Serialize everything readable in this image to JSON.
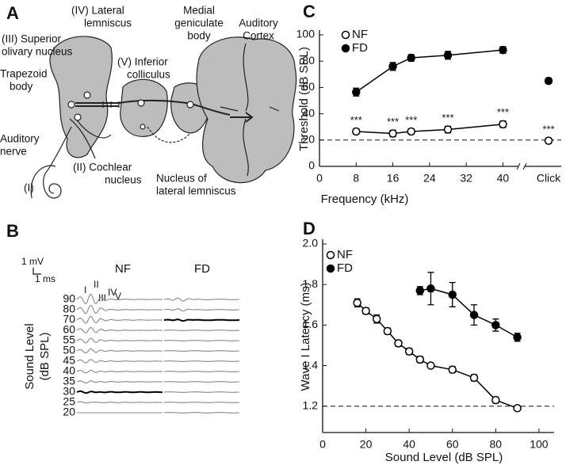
{
  "figure": {
    "panel_labels": [
      "A",
      "B",
      "C",
      "D"
    ],
    "diagram": {
      "labels": [
        [
          "(IV) Lateral",
          "lemniscus"
        ],
        [
          "(III) Superior",
          "olivary nucleus"
        ],
        [
          "Medial",
          "geniculate",
          "body"
        ],
        [
          "Auditory",
          "Cortex"
        ],
        [
          "Trapezoid",
          "body"
        ],
        [
          "(V) Inferior",
          "colliculus"
        ],
        [
          "Auditory",
          "nerve"
        ],
        [
          "(II) Cochlear",
          "nucleus"
        ],
        [
          "Nucleus of",
          "lateral lemniscus"
        ],
        [
          "(I)"
        ]
      ]
    },
    "traces": {
      "scale": [
        "1 mV",
        "1 ms"
      ],
      "groups": [
        "NF",
        "FD"
      ],
      "y_label": [
        "Sound Level",
        "(dB SPL)"
      ],
      "levels": [
        90,
        80,
        70,
        60,
        55,
        50,
        45,
        40,
        35,
        30,
        25,
        20
      ],
      "highlight": [
        30,
        70
      ],
      "waves": [
        "I",
        "II",
        "III",
        "IV",
        "V"
      ]
    }
  },
  "chart_data": [
    {
      "type": "line",
      "y_label": "Threshold (dB SPL)",
      "x_label": "Frequency (kHz)",
      "xlim": [
        0,
        42
      ],
      "xticks": [
        0,
        8,
        16,
        24,
        32,
        40
      ],
      "ylim": [
        0,
        100
      ],
      "yticks": [
        0,
        20,
        40,
        60,
        80,
        100
      ],
      "x": [
        8,
        16,
        20,
        28,
        40
      ],
      "reference_line": 20,
      "extra_category": "Click",
      "legend": "top-left",
      "series": [
        {
          "name": "NF",
          "marker": "open",
          "values": [
            26.5,
            25,
            26.5,
            28,
            32
          ],
          "errors": [
            2,
            2.5,
            2,
            2.5,
            2.5
          ],
          "point_labels": [
            "***",
            "***",
            "***",
            "***",
            "***"
          ],
          "extra_value": 19.5,
          "extra_error": 2,
          "extra_point_label": "***"
        },
        {
          "name": "FD",
          "marker": "filled",
          "values": [
            56.5,
            76,
            82.5,
            84.5,
            88.5
          ],
          "errors": [
            3,
            3,
            2.5,
            3,
            2.5
          ],
          "extra_value": 65,
          "extra_error": 2
        }
      ]
    },
    {
      "type": "line",
      "y_label": "Wave I Latency (ms)",
      "x_label": "Sound Level (dB SPL)",
      "xlim": [
        0,
        107
      ],
      "xticks": [
        0,
        20,
        40,
        60,
        80,
        100
      ],
      "ylim": [
        1.07,
        2.0
      ],
      "yticks": [
        1.2,
        1.4,
        1.6,
        1.8,
        {
          "value": 2.0,
          "label": "2.0"
        }
      ],
      "reference_line": 1.2,
      "legend": "top-left",
      "series": [
        {
          "name": "NF",
          "marker": "open",
          "x": [
            16,
            20,
            25,
            30,
            35,
            40,
            45,
            50,
            60,
            70,
            80,
            90
          ],
          "values": [
            1.71,
            1.67,
            1.63,
            1.57,
            1.51,
            1.47,
            1.43,
            1.4,
            1.38,
            1.34,
            1.23,
            1.19
          ],
          "errors": [
            0.02,
            0.015,
            0.02,
            0.015,
            0.015,
            0.015,
            0.015,
            0.01,
            0.015,
            0.015,
            0.015,
            0.01
          ]
        },
        {
          "name": "FD",
          "marker": "filled",
          "x": [
            45,
            50,
            60,
            70,
            80,
            90
          ],
          "values": [
            1.77,
            1.78,
            1.75,
            1.65,
            1.6,
            1.54
          ],
          "errors": [
            0.02,
            0.08,
            0.06,
            0.05,
            0.03,
            0.02
          ]
        }
      ]
    }
  ]
}
